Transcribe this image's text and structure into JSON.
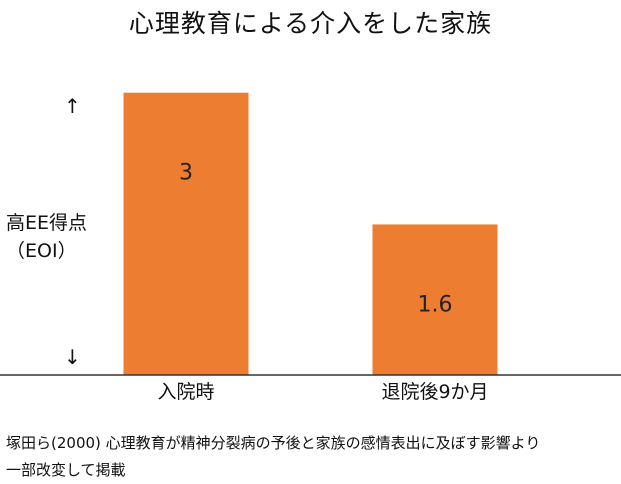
{
  "chart_data": {
    "type": "bar",
    "title": "心理教育による介入をした家族",
    "ylabel": "高EE得点",
    "ylabel_sub": "（EOI）",
    "y_arrow_up": "↑",
    "y_arrow_down": "↓",
    "categories": [
      "入院時",
      "退院後9か月"
    ],
    "values": [
      3,
      1.6
    ],
    "data_labels": [
      "3",
      "1.6"
    ],
    "ylim": [
      0,
      3.05
    ],
    "bar_color": "#ed7d31",
    "grid": false,
    "legend": "none"
  },
  "source": {
    "line1": "塚田ら(2000) 心理教育が精神分裂病の予後と家族の感情表出に及ぼす影響より",
    "line2": "一部改変して掲載"
  }
}
